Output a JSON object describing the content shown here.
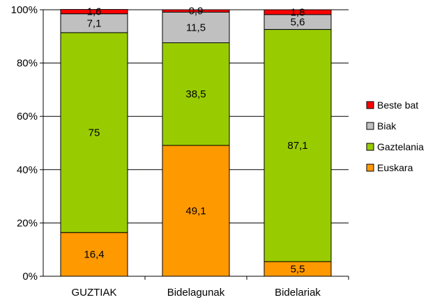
{
  "chart_data": {
    "type": "bar",
    "stacked": "percent",
    "categories": [
      "GUZTIAK",
      "Bidelagunak",
      "Bidelariak"
    ],
    "series": [
      {
        "name": "Euskara",
        "color": "#FF9900",
        "values": [
          16.4,
          49.1,
          5.5
        ]
      },
      {
        "name": "Gaztelania",
        "color": "#99CC00",
        "values": [
          75,
          38.5,
          87.1
        ]
      },
      {
        "name": "Biak",
        "color": "#C0C0C0",
        "values": [
          7.1,
          11.5,
          5.6
        ]
      },
      {
        "name": "Beste bat",
        "color": "#FF0000",
        "values": [
          1.6,
          0.9,
          1.8
        ]
      }
    ],
    "data_labels": [
      [
        "16,4",
        "49,1",
        "5,5"
      ],
      [
        "75",
        "38,5",
        "87,1"
      ],
      [
        "7,1",
        "11,5",
        "5,6"
      ],
      [
        "1,6",
        "0,9",
        "1,8"
      ]
    ],
    "y_ticks": [
      "0%",
      "20%",
      "40%",
      "60%",
      "80%",
      "100%"
    ],
    "ylim": [
      0,
      100
    ],
    "grid": true,
    "legend": {
      "position": "right",
      "order": [
        "Beste bat",
        "Biak",
        "Gaztelania",
        "Euskara"
      ]
    }
  }
}
